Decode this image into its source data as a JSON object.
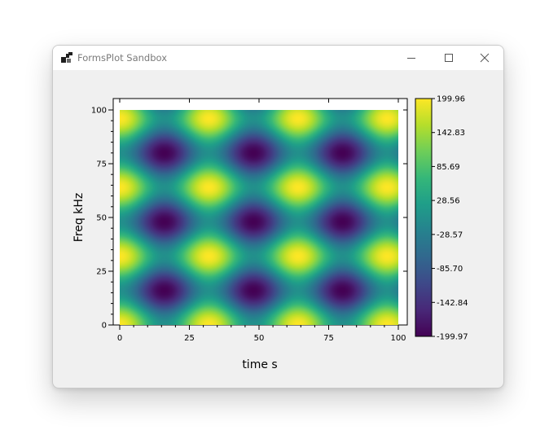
{
  "window": {
    "title": "FormsPlot Sandbox"
  },
  "colors": {
    "titlebar": "#ffffff",
    "client": "#f0f0f0",
    "plot_bg": "#ffffff"
  },
  "icons": {
    "app": "app-icon",
    "minimize": "minimize-icon",
    "maximize": "maximize-icon",
    "close": "close-icon"
  },
  "chart_data": {
    "type": "heatmap",
    "colormap": "viridis",
    "xlabel": "time s",
    "ylabel": "Freq kHz",
    "xlim": [
      0,
      100
    ],
    "ylim": [
      0,
      100
    ],
    "xticks": [
      0,
      25,
      50,
      75,
      100
    ],
    "yticks": [
      0,
      25,
      50,
      75,
      100
    ],
    "xtick_labels": [
      "0",
      "25",
      "50",
      "75",
      "100"
    ],
    "ytick_labels": [
      "0",
      "25",
      "50",
      "75",
      "100"
    ],
    "x_period": 32,
    "y_period": 32,
    "x_peaks": [
      0,
      32,
      64,
      96
    ],
    "y_peaks": [
      0,
      32,
      64,
      96
    ],
    "value_min": -199.97,
    "value_max": 199.96,
    "colorbar_ticks": [
      199.96,
      142.83,
      85.69,
      28.56,
      -28.57,
      -85.7,
      -142.84,
      -199.97
    ],
    "colorbar_labels": [
      "199.96",
      "142.83",
      "85.69",
      "28.56",
      "-28.57",
      "-85.70",
      "-142.84",
      "-199.97"
    ]
  }
}
